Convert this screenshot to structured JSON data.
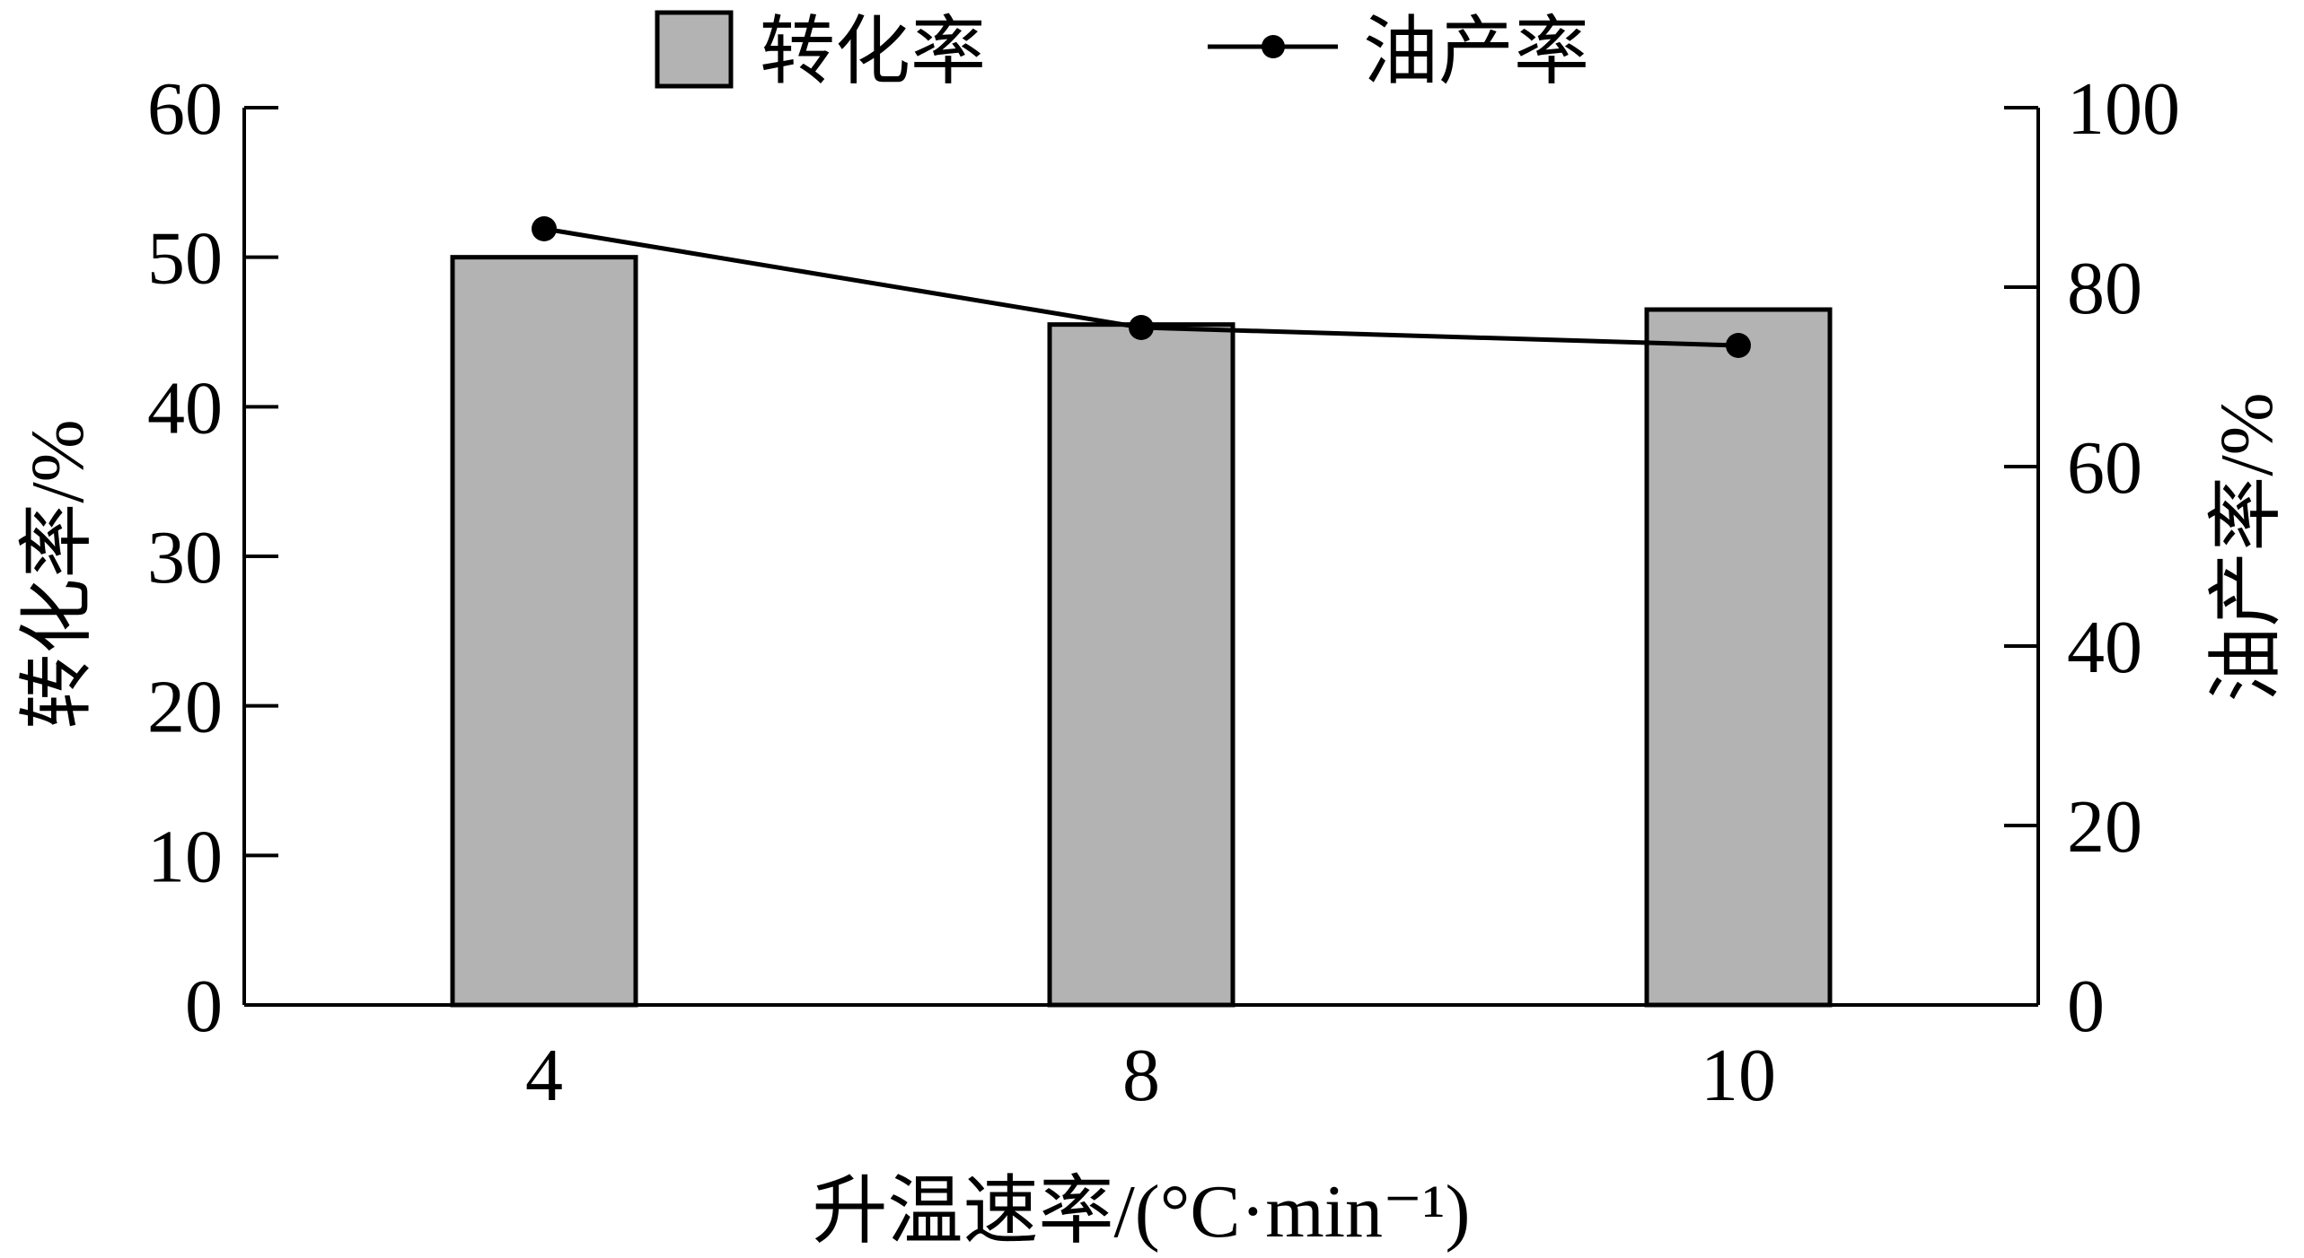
{
  "chart_data": {
    "type": "bar",
    "categories": [
      "4",
      "8",
      "10"
    ],
    "series": [
      {
        "name": "转化率",
        "type": "bar",
        "axis": "left",
        "values": [
          50,
          45.5,
          46.5
        ]
      },
      {
        "name": "油产率",
        "type": "line",
        "axis": "right",
        "values": [
          86.5,
          75.5,
          73.5
        ]
      }
    ],
    "xlabel": "升温速率/(°C·min⁻¹)",
    "ylabel_left": "转化率/%",
    "ylabel_right": "油产率/%",
    "ylim_left": [
      0,
      60
    ],
    "yticks_left": [
      "0",
      "10",
      "20",
      "30",
      "40",
      "50",
      "60"
    ],
    "ylim_right": [
      0,
      100
    ],
    "yticks_right": [
      "0",
      "20",
      "40",
      "60",
      "80",
      "100"
    ],
    "grid": false,
    "legend_position": "top-center",
    "colors": {
      "bar": "#b3b3b3",
      "line": "#000000"
    }
  }
}
